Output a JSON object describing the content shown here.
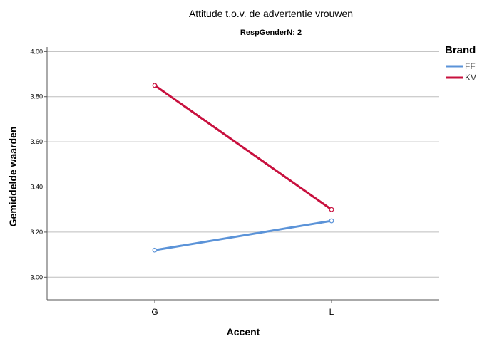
{
  "chart_data": {
    "type": "line",
    "title": "Attitude t.o.v. de advertentie vrouwen",
    "subtitle": "RespGenderN: 2",
    "xlabel": "Accent",
    "ylabel": "Gemiddelde waarden",
    "categories": [
      "G",
      "L"
    ],
    "ylim": [
      2.9,
      4.02
    ],
    "yticks": [
      "3.00",
      "3.20",
      "3.40",
      "3.60",
      "3.80",
      "4.00"
    ],
    "grid": true,
    "legend": {
      "title": "Brand",
      "placement": "top-right"
    },
    "series": [
      {
        "name": "FF",
        "values": [
          3.12,
          3.25
        ],
        "color": "#5b93d8"
      },
      {
        "name": "KV",
        "values": [
          3.85,
          3.3
        ],
        "color": "#c8103e"
      }
    ]
  }
}
